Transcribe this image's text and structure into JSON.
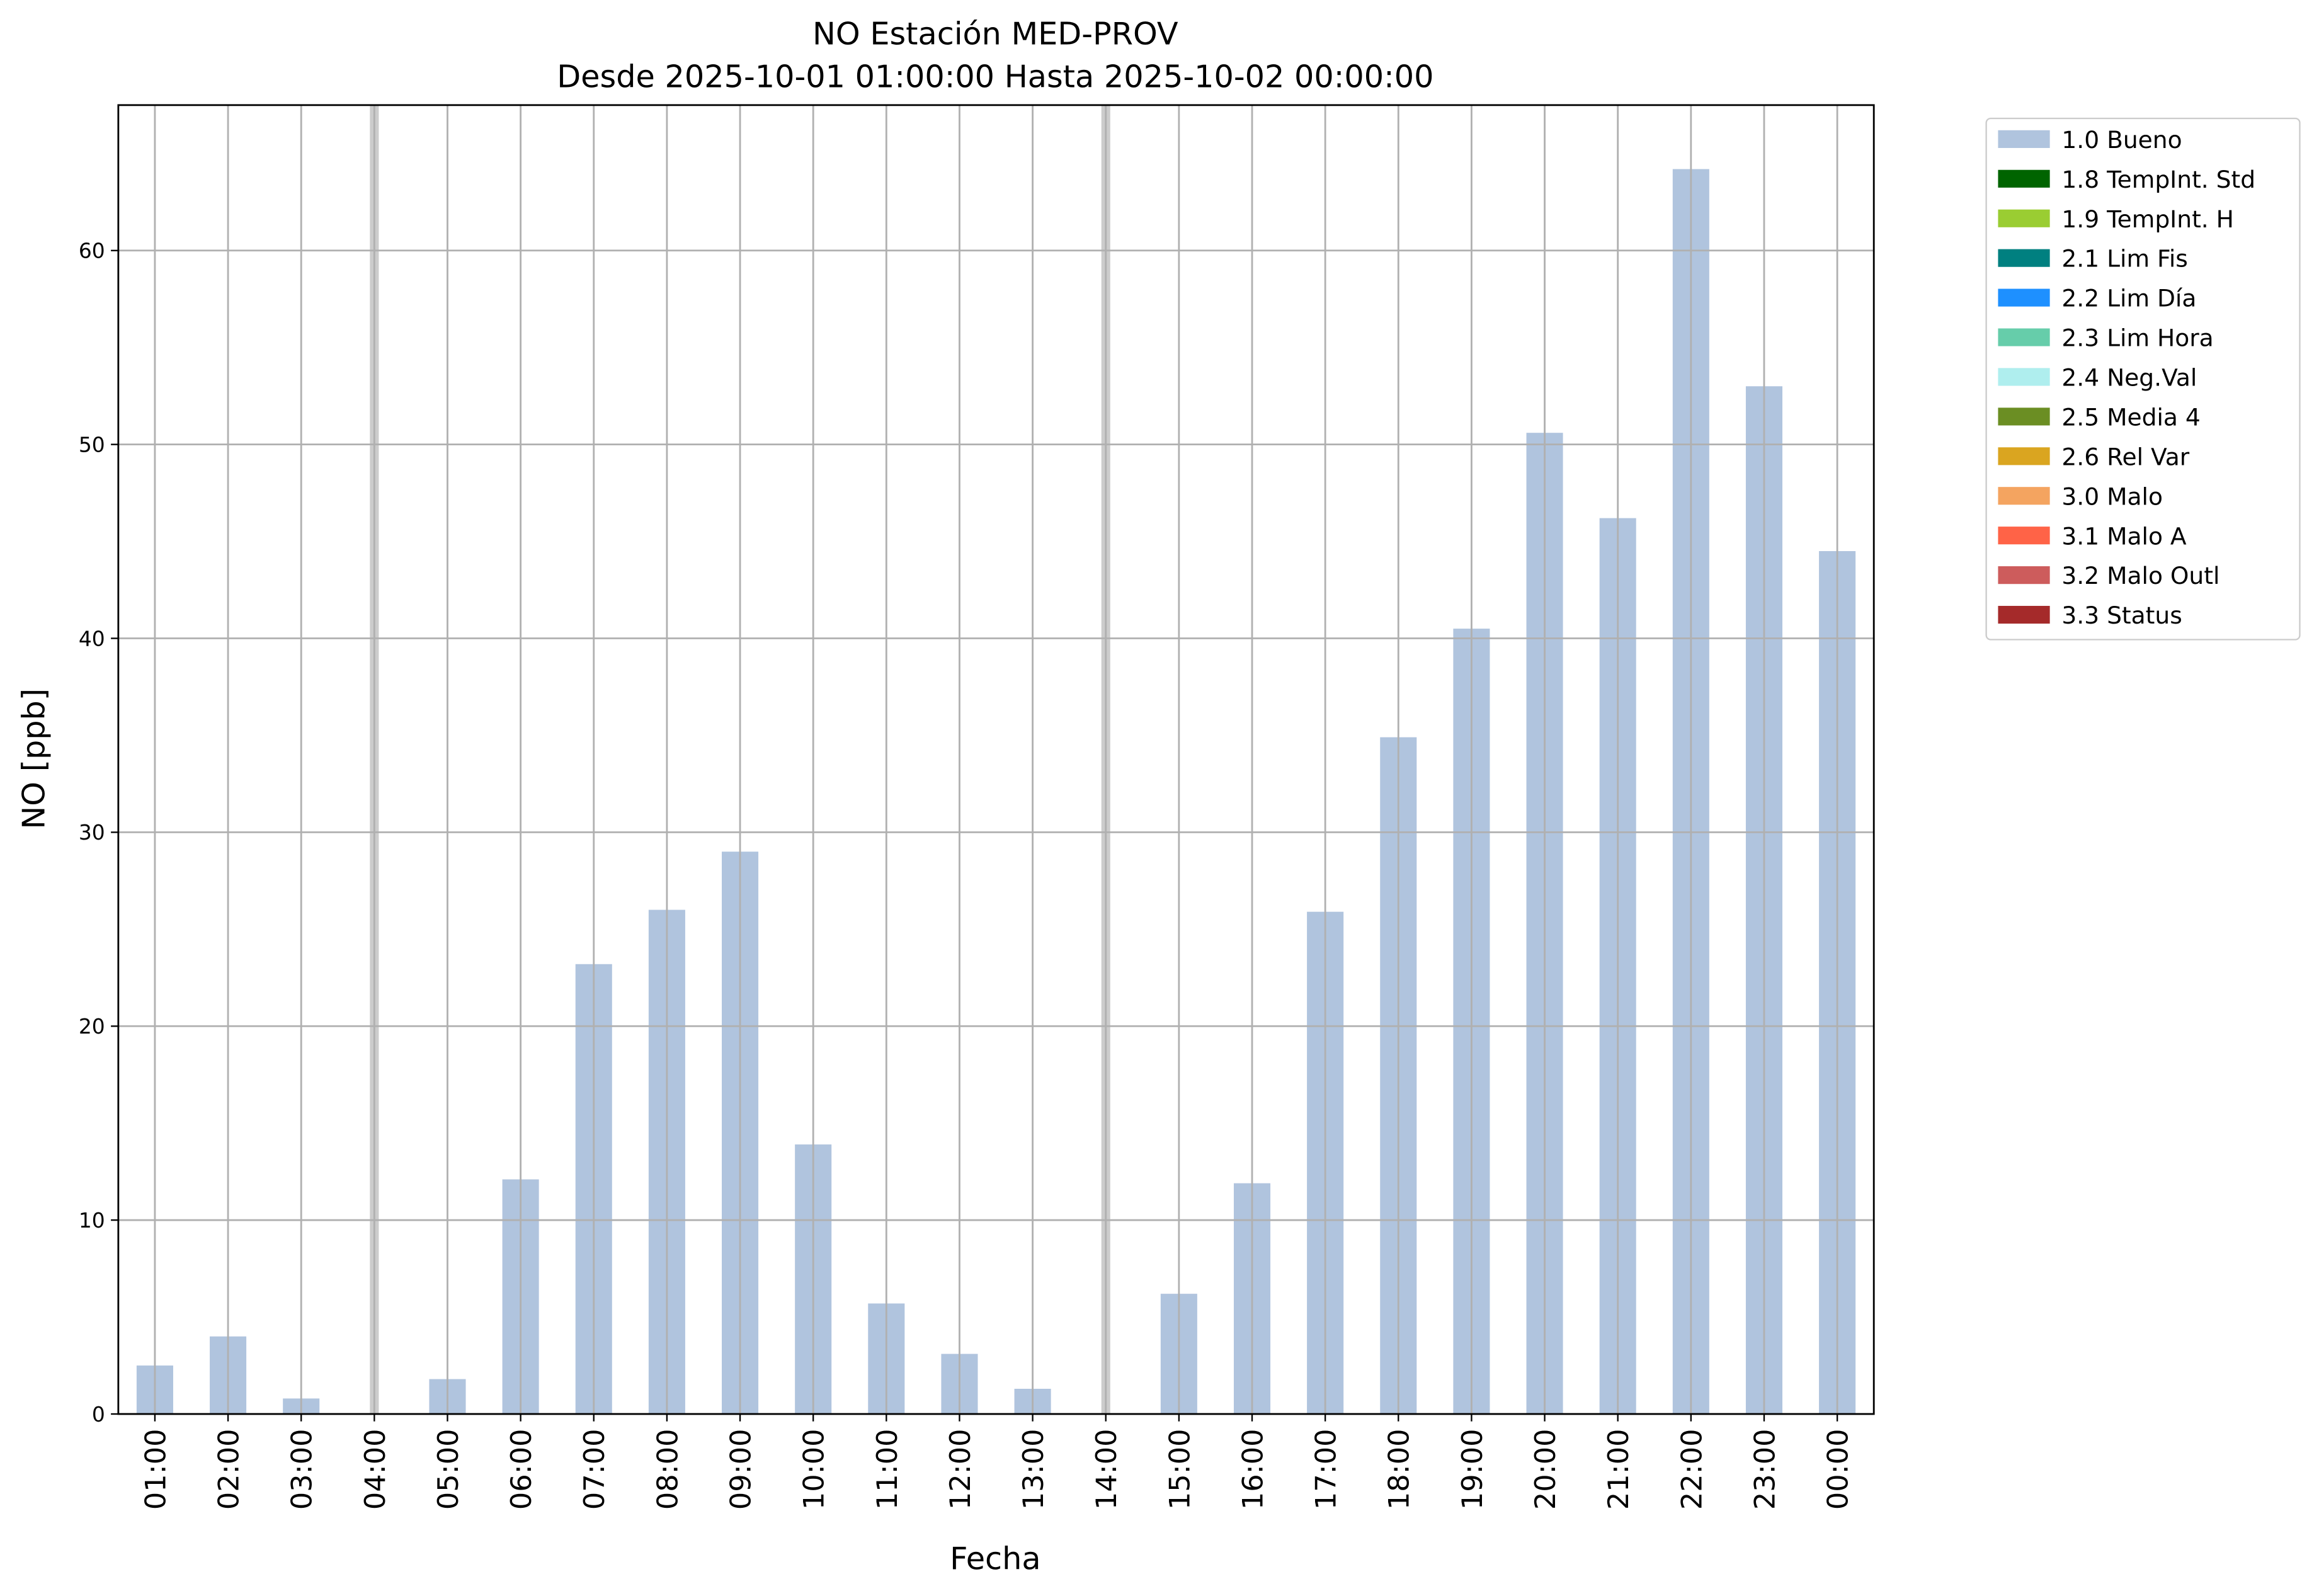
{
  "chart_data": {
    "type": "bar",
    "title": "NO Estación MED-PROV",
    "subtitle": "Desde 2025-10-01 01:00:00 Hasta 2025-10-02 00:00:00",
    "x_label": "Fecha",
    "y_label": "NO [ppb]",
    "categories": [
      "01:00",
      "02:00",
      "03:00",
      "04:00",
      "05:00",
      "06:00",
      "07:00",
      "08:00",
      "09:00",
      "10:00",
      "11:00",
      "12:00",
      "13:00",
      "14:00",
      "15:00",
      "16:00",
      "17:00",
      "18:00",
      "19:00",
      "20:00",
      "21:00",
      "22:00",
      "23:00",
      "00:00"
    ],
    "series": [
      {
        "name": "1.0 Bueno",
        "color": "#b0c4de",
        "values": [
          2.5,
          4.0,
          0.8,
          null,
          1.8,
          12.1,
          23.2,
          26.0,
          29.0,
          13.9,
          5.7,
          3.1,
          1.3,
          null,
          6.2,
          11.9,
          25.9,
          34.9,
          40.5,
          50.6,
          46.2,
          64.2,
          53.0,
          44.5
        ]
      },
      {
        "name": "1.8 TempInt. Std",
        "color": "#006400",
        "values": [
          null,
          null,
          null,
          null,
          null,
          null,
          null,
          null,
          null,
          null,
          null,
          null,
          null,
          null,
          null,
          null,
          null,
          null,
          null,
          null,
          null,
          null,
          null,
          null
        ]
      },
      {
        "name": "1.9 TempInt. H",
        "color": "#9acd32",
        "values": [
          null,
          null,
          null,
          null,
          null,
          null,
          null,
          null,
          null,
          null,
          null,
          null,
          null,
          null,
          null,
          null,
          null,
          null,
          null,
          null,
          null,
          null,
          null,
          null
        ]
      },
      {
        "name": "2.1 Lim Fis",
        "color": "#008080",
        "values": [
          null,
          null,
          null,
          null,
          null,
          null,
          null,
          null,
          null,
          null,
          null,
          null,
          null,
          null,
          null,
          null,
          null,
          null,
          null,
          null,
          null,
          null,
          null,
          null
        ]
      },
      {
        "name": "2.2 Lim Día",
        "color": "#1e90ff",
        "values": [
          null,
          null,
          null,
          null,
          null,
          null,
          null,
          null,
          null,
          null,
          null,
          null,
          null,
          null,
          null,
          null,
          null,
          null,
          null,
          null,
          null,
          null,
          null,
          null
        ]
      },
      {
        "name": "2.3 Lim Hora",
        "color": "#66cdaa",
        "values": [
          null,
          null,
          null,
          null,
          null,
          null,
          null,
          null,
          null,
          null,
          null,
          null,
          null,
          null,
          null,
          null,
          null,
          null,
          null,
          null,
          null,
          null,
          null,
          null
        ]
      },
      {
        "name": "2.4 Neg.Val",
        "color": "#afeeee",
        "values": [
          null,
          null,
          null,
          null,
          null,
          null,
          null,
          null,
          null,
          null,
          null,
          null,
          null,
          null,
          null,
          null,
          null,
          null,
          null,
          null,
          null,
          null,
          null,
          null
        ]
      },
      {
        "name": "2.5 Media 4",
        "color": "#6b8e23",
        "values": [
          null,
          null,
          null,
          null,
          null,
          null,
          null,
          null,
          null,
          null,
          null,
          null,
          null,
          null,
          null,
          null,
          null,
          null,
          null,
          null,
          null,
          null,
          null,
          null
        ]
      },
      {
        "name": "2.6 Rel Var",
        "color": "#daa520",
        "values": [
          null,
          null,
          null,
          null,
          null,
          null,
          null,
          null,
          null,
          null,
          null,
          null,
          null,
          null,
          null,
          null,
          null,
          null,
          null,
          null,
          null,
          null,
          null,
          null
        ]
      },
      {
        "name": "3.0 Malo",
        "color": "#f4a460",
        "values": [
          null,
          null,
          null,
          null,
          null,
          null,
          null,
          null,
          null,
          null,
          null,
          null,
          null,
          null,
          null,
          null,
          null,
          null,
          null,
          null,
          null,
          null,
          null,
          null
        ]
      },
      {
        "name": "3.1 Malo A",
        "color": "#ff6347",
        "values": [
          null,
          null,
          null,
          null,
          null,
          null,
          null,
          null,
          null,
          null,
          null,
          null,
          null,
          null,
          null,
          null,
          null,
          null,
          null,
          null,
          null,
          null,
          null,
          null
        ]
      },
      {
        "name": "3.2 Malo Outl",
        "color": "#cd5c5c",
        "values": [
          null,
          null,
          null,
          null,
          null,
          null,
          null,
          null,
          null,
          null,
          null,
          null,
          null,
          null,
          null,
          null,
          null,
          null,
          null,
          null,
          null,
          null,
          null,
          null
        ]
      },
      {
        "name": "3.3 Status",
        "color": "#a52a2a",
        "values": [
          null,
          null,
          null,
          null,
          null,
          null,
          null,
          null,
          null,
          null,
          null,
          null,
          null,
          null,
          null,
          null,
          null,
          null,
          null,
          null,
          null,
          null,
          null,
          null
        ]
      }
    ],
    "ylim": [
      0,
      67.5
    ],
    "yticks": [
      0,
      10,
      20,
      30,
      40,
      50,
      60
    ],
    "grid": true,
    "legend": "outside-upper-right"
  }
}
